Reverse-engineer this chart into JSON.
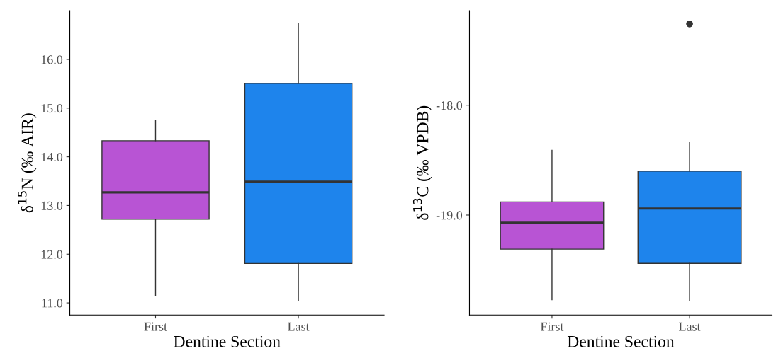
{
  "chart_data": [
    {
      "type": "box",
      "xlabel": "Dentine Section",
      "ylabel": "δ$^{15}$N (‰ AIR)",
      "categories": [
        "First",
        "Last"
      ],
      "colors": [
        "#b854d4",
        "#1e84ec"
      ],
      "boxes": [
        {
          "low": 11.15,
          "q1": 12.72,
          "median": 13.27,
          "q3": 14.33,
          "high": 14.75
        },
        {
          "low": 11.04,
          "q1": 11.81,
          "median": 13.49,
          "q3": 15.51,
          "high": 16.74
        }
      ],
      "ylim": [
        10.75,
        17.0
      ],
      "yticks": [
        {
          "value": 11,
          "label": "11.0"
        },
        {
          "value": 12,
          "label": "12.0"
        },
        {
          "value": 13,
          "label": "13.0"
        },
        {
          "value": 14,
          "label": "14.0"
        },
        {
          "value": 15,
          "label": "15.0"
        },
        {
          "value": 16,
          "label": "16.0"
        }
      ],
      "grid": false,
      "legend": false
    },
    {
      "type": "box",
      "xlabel": "Dentine Section",
      "ylabel": "δ$^{13}$C (‰ VPDB)",
      "categories": [
        "First",
        "Last"
      ],
      "colors": [
        "#b854d4",
        "#1e84ec"
      ],
      "boxes": [
        {
          "low": -19.77,
          "q1": -19.31,
          "median": -19.07,
          "q3": -18.88,
          "high": -18.41
        },
        {
          "low": -19.78,
          "q1": -19.44,
          "median": -18.94,
          "q3": -18.6,
          "high": -18.34,
          "outliers": [
            -17.26
          ]
        }
      ],
      "ylim": [
        -19.91,
        -17.14
      ],
      "yticks": [
        {
          "value": -19,
          "label": "-19.0"
        },
        {
          "value": -18,
          "label": "-18.0"
        }
      ],
      "grid": false,
      "legend": false
    }
  ]
}
